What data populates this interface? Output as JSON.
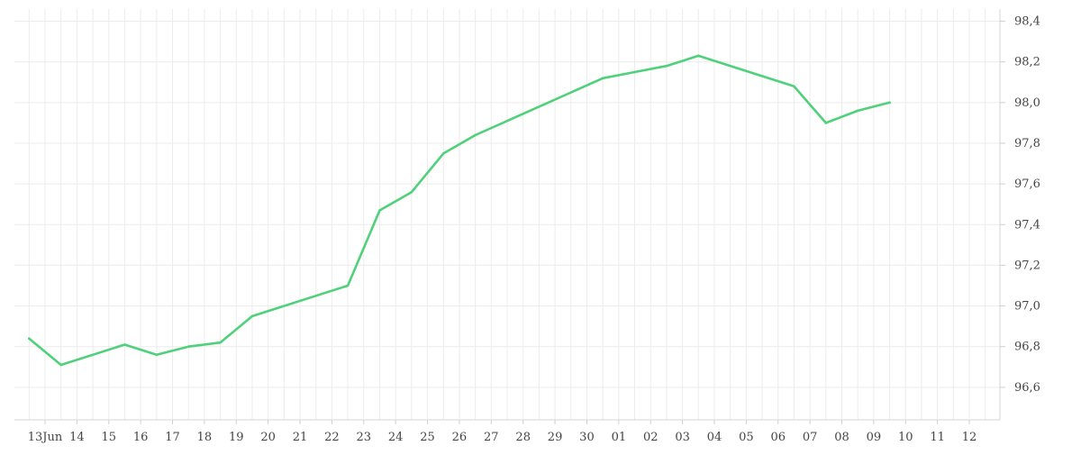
{
  "chart_data": {
    "type": "line",
    "title": "",
    "xlabel": "",
    "ylabel": "",
    "ylim": [
      96.44,
      98.46
    ],
    "y_ticks": [
      "96,6",
      "96,8",
      "97,0",
      "97,2",
      "97,4",
      "97,6",
      "97,8",
      "98,0",
      "98,2",
      "98,4"
    ],
    "y_tick_values": [
      96.6,
      96.8,
      97.0,
      97.2,
      97.4,
      97.6,
      97.8,
      98.0,
      98.2,
      98.4
    ],
    "y_axis_position": "right",
    "x_ticks": [
      "13Jun",
      "14",
      "15",
      "16",
      "17",
      "18",
      "19",
      "20",
      "21",
      "22",
      "23",
      "24",
      "25",
      "26",
      "27",
      "28",
      "29",
      "30",
      "01",
      "02",
      "03",
      "04",
      "05",
      "06",
      "07",
      "08",
      "09",
      "10",
      "11",
      "12"
    ],
    "x_tick_dates": [
      "2024-06-13",
      "2024-06-14",
      "2024-06-15",
      "2024-06-16",
      "2024-06-17",
      "2024-06-18",
      "2024-06-19",
      "2024-06-20",
      "2024-06-21",
      "2024-06-22",
      "2024-06-23",
      "2024-06-24",
      "2024-06-25",
      "2024-06-26",
      "2024-06-27",
      "2024-06-28",
      "2024-06-29",
      "2024-06-30",
      "2024-07-01",
      "2024-07-02",
      "2024-07-03",
      "2024-07-04",
      "2024-07-05",
      "2024-07-06",
      "2024-07-07",
      "2024-07-08",
      "2024-07-09",
      "2024-07-10",
      "2024-07-11",
      "2024-07-12"
    ],
    "grid": true,
    "legend": "none",
    "series": [
      {
        "color": "#4fd17a",
        "points": [
          {
            "x": "2024-06-12T12:00",
            "y": 96.84
          },
          {
            "x": "2024-06-13T12:00",
            "y": 96.71
          },
          {
            "x": "2024-06-15T12:00",
            "y": 96.81
          },
          {
            "x": "2024-06-16T12:00",
            "y": 96.76
          },
          {
            "x": "2024-06-17T12:00",
            "y": 96.8
          },
          {
            "x": "2024-06-18T12:00",
            "y": 96.82
          },
          {
            "x": "2024-06-19T12:00",
            "y": 96.95
          },
          {
            "x": "2024-06-22T12:00",
            "y": 97.1
          },
          {
            "x": "2024-06-23T12:00",
            "y": 97.47
          },
          {
            "x": "2024-06-24T12:00",
            "y": 97.56
          },
          {
            "x": "2024-06-25T12:00",
            "y": 97.75
          },
          {
            "x": "2024-06-26T12:00",
            "y": 97.84
          },
          {
            "x": "2024-06-30T12:00",
            "y": 98.12
          },
          {
            "x": "2024-07-01T12:00",
            "y": 98.15
          },
          {
            "x": "2024-07-02T12:00",
            "y": 98.18
          },
          {
            "x": "2024-07-03T12:00",
            "y": 98.23
          },
          {
            "x": "2024-07-06T12:00",
            "y": 98.08
          },
          {
            "x": "2024-07-07T12:00",
            "y": 97.9
          },
          {
            "x": "2024-07-08T12:00",
            "y": 97.96
          },
          {
            "x": "2024-07-09T12:00",
            "y": 98.0
          }
        ]
      }
    ]
  }
}
